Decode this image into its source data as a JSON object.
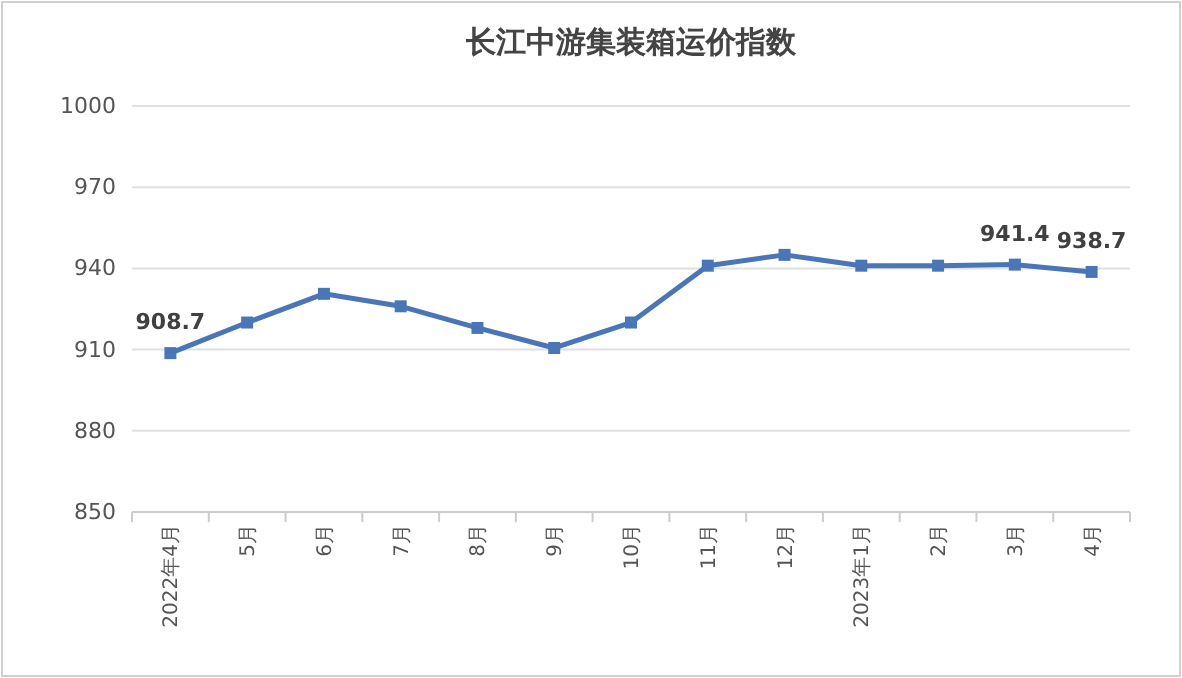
{
  "chart_data": {
    "type": "line",
    "title": "长江中游集装箱运价指数",
    "categories": [
      "2022年4月",
      "5月",
      "6月",
      "7月",
      "8月",
      "9月",
      "10月",
      "11月",
      "12月",
      "2023年1月",
      "2月",
      "3月",
      "4月"
    ],
    "series": [
      {
        "color": "#4a76b8",
        "values": [
          908.7,
          920,
          930.6,
          926,
          918,
          910.6,
          920,
          941,
          945,
          941,
          941,
          941.4,
          938.7
        ],
        "value_labels": [
          "908.7",
          null,
          null,
          null,
          null,
          null,
          null,
          null,
          null,
          null,
          null,
          "941.4",
          "938.7"
        ]
      }
    ],
    "ylim": [
      850,
      1000
    ],
    "yticks": [
      850,
      880,
      910,
      940,
      970,
      1000
    ],
    "grid": "y",
    "marker": "square",
    "line_style": "solid"
  }
}
